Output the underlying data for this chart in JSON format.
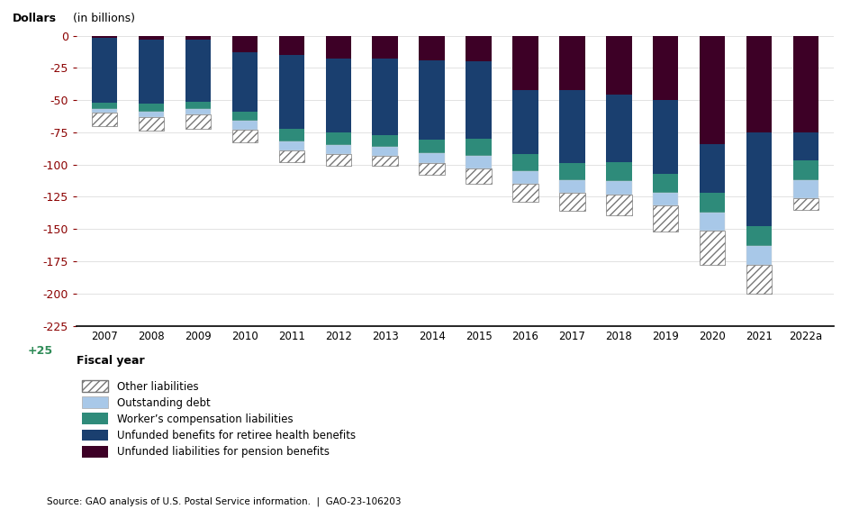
{
  "years": [
    "2007",
    "2008",
    "2009",
    "2010",
    "2011",
    "2012",
    "2013",
    "2014",
    "2015",
    "2016",
    "2017",
    "2018",
    "2019",
    "2020",
    "2021",
    "2022a"
  ],
  "pension": [
    2,
    3,
    3,
    13,
    15,
    18,
    18,
    19,
    20,
    42,
    42,
    46,
    50,
    84,
    75,
    75
  ],
  "retiree_health": [
    50,
    50,
    48,
    46,
    57,
    57,
    59,
    62,
    60,
    50,
    57,
    52,
    57,
    38,
    73,
    22
  ],
  "workers_comp": [
    5,
    6,
    6,
    7,
    10,
    10,
    9,
    10,
    13,
    13,
    13,
    15,
    15,
    15,
    15,
    15
  ],
  "outstanding_debt": [
    3,
    4,
    4,
    7,
    7,
    7,
    7,
    8,
    10,
    10,
    10,
    10,
    10,
    14,
    15,
    14
  ],
  "other": [
    10,
    11,
    11,
    10,
    9,
    9,
    8,
    9,
    12,
    14,
    14,
    16,
    20,
    27,
    22,
    9
  ],
  "colors": {
    "pension": "#3d0026",
    "retiree_health": "#1a3f6f",
    "workers_comp": "#2e8b7a",
    "outstanding_debt": "#a8c8e8",
    "other": "#ffffff"
  },
  "ylabel": "Dollars (in billions)",
  "xlabel": "Fiscal year",
  "ylim_min": 0,
  "ylim_max": 225,
  "yticks": [
    0,
    25,
    50,
    75,
    100,
    125,
    150,
    175,
    200,
    225
  ],
  "ytick_labels": [
    "0",
    "-25",
    "-50",
    "-75",
    "-100",
    "-125",
    "-150",
    "-175",
    "-200",
    "-225"
  ],
  "extra_tick_label": "+25",
  "source_text": "Source: GAO analysis of U.S. Postal Service information.  |  GAO-23-106203",
  "legend_labels": [
    "Other liabilities",
    "Outstanding debt",
    "Worker’s compensation liabilities",
    "Unfunded benefits for retiree health benefits",
    "Unfunded liabilities for pension benefits"
  ]
}
